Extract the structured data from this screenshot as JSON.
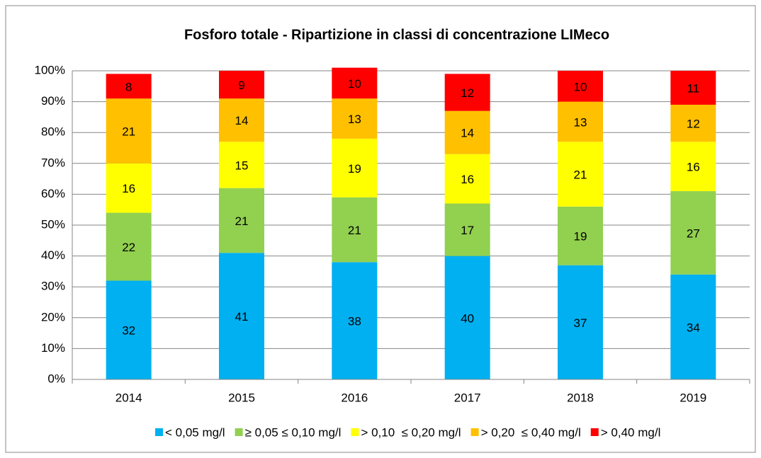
{
  "chart_data": {
    "type": "stacked_bar",
    "title": "Fosforo totale - Ripartizione in classi di concentrazione LIMeco",
    "categories": [
      "2014",
      "2015",
      "2016",
      "2017",
      "2018",
      "2019"
    ],
    "series": [
      {
        "name": "< 0,05 mg/l",
        "color": "#00b0f0",
        "values": [
          32,
          41,
          38,
          40,
          37,
          34
        ]
      },
      {
        "name": "≥ 0,05 ≤ 0,10 mg/l",
        "color": "#92d050",
        "values": [
          22,
          21,
          21,
          17,
          19,
          27
        ]
      },
      {
        "name": "> 0,10  ≤ 0,20 mg/l",
        "color": "#ffff00",
        "values": [
          16,
          15,
          19,
          16,
          21,
          16
        ]
      },
      {
        "name": "> 0,20  ≤ 0,40 mg/l",
        "color": "#ffc000",
        "values": [
          21,
          14,
          13,
          14,
          13,
          12
        ]
      },
      {
        "name": "> 0,40 mg/l",
        "color": "#ff0000",
        "values": [
          8,
          9,
          10,
          12,
          10,
          11
        ]
      }
    ],
    "ylim": [
      0,
      100
    ],
    "yticks": [
      {
        "value": 0,
        "label": "0%"
      },
      {
        "value": 10,
        "label": "10%"
      },
      {
        "value": 20,
        "label": "20%"
      },
      {
        "value": 30,
        "label": "30%"
      },
      {
        "value": 40,
        "label": "40%"
      },
      {
        "value": 50,
        "label": "50%"
      },
      {
        "value": 60,
        "label": "60%"
      },
      {
        "value": 70,
        "label": "70%"
      },
      {
        "value": 80,
        "label": "80%"
      },
      {
        "value": 90,
        "label": "90%"
      },
      {
        "value": 100,
        "label": "100%"
      }
    ],
    "grid": true,
    "legend": "bottom"
  }
}
